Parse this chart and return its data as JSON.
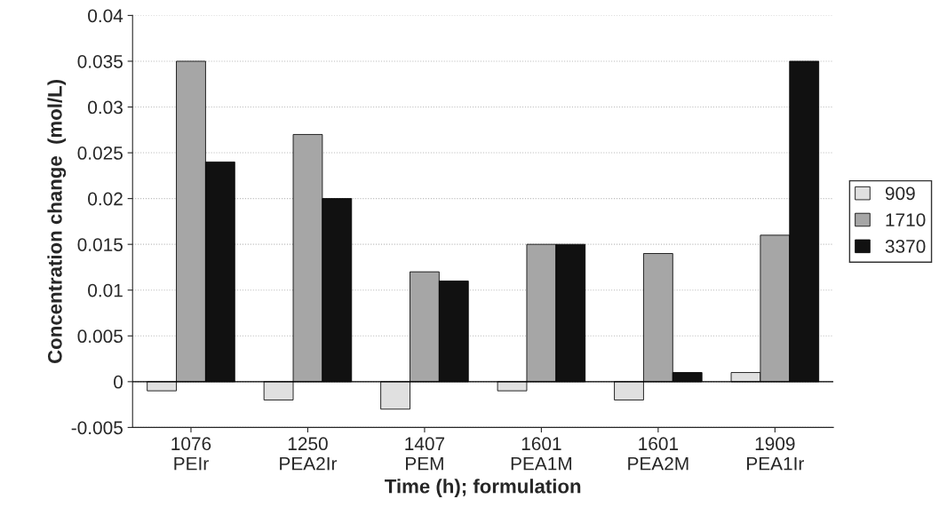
{
  "chart_data": {
    "type": "bar",
    "xlabel": "Time (h); formulation",
    "ylabel": "Concentration change  (mol/L)",
    "categories": [
      "1076\nPEIr",
      "1250\nPEA2Ir",
      "1407\nPEM",
      "1601\nPEA1M",
      "1601\nPEA2M",
      "1909\nPEA1Ir"
    ],
    "series": [
      {
        "name": "909",
        "color": "#e0e0e0",
        "values": [
          -0.001,
          -0.002,
          -0.003,
          -0.001,
          -0.002,
          0.001
        ]
      },
      {
        "name": "1710",
        "color": "#a6a6a6",
        "values": [
          0.035,
          0.027,
          0.012,
          0.015,
          0.014,
          0.016
        ]
      },
      {
        "name": "3370",
        "color": "#111111",
        "values": [
          0.024,
          0.02,
          0.011,
          0.015,
          0.001,
          0.035
        ]
      }
    ],
    "ylim": [
      -0.005,
      0.04
    ],
    "yticks": [
      {
        "value": -0.005,
        "label": "-0.005"
      },
      0,
      {
        "value": 0.005,
        "label": "0.005"
      },
      {
        "value": 0.01,
        "label": "0.01"
      },
      {
        "value": 0.015,
        "label": "0.015"
      },
      {
        "value": 0.02,
        "label": "0.02"
      },
      {
        "value": 0.025,
        "label": "0.025"
      },
      {
        "value": 0.03,
        "label": "0.03"
      },
      {
        "value": 0.035,
        "label": "0.035"
      },
      {
        "value": 0.04,
        "label": "0.04"
      }
    ],
    "grid": "y",
    "legend": "right"
  }
}
